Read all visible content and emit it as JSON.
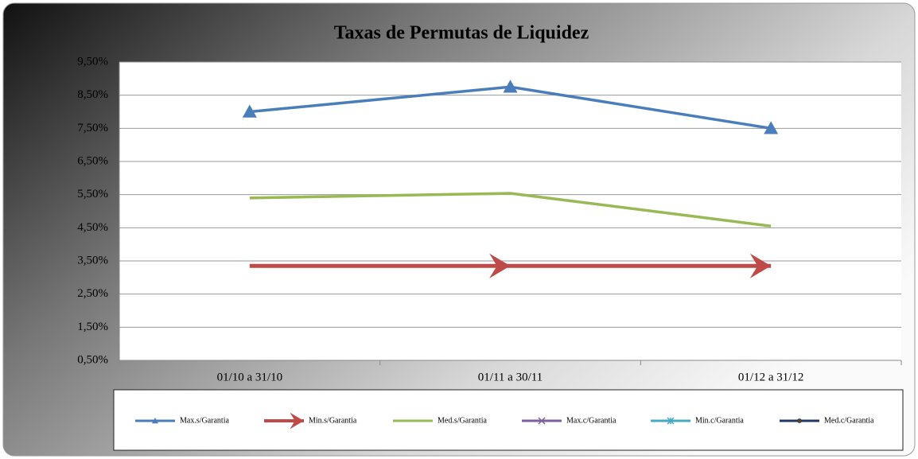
{
  "chart_data": {
    "type": "line",
    "title": "Taxas de Permutas de Liquidez",
    "categories": [
      "01/10 a 31/10",
      "01/11 a 30/11",
      "01/12 a 31/12"
    ],
    "series": [
      {
        "name": "Max.s/Garantia",
        "color": "#4a7ebb",
        "marker": "triangle",
        "values": [
          8.0,
          8.75,
          7.5
        ]
      },
      {
        "name": "Min.s/Garantia",
        "color": "#be4b48",
        "marker": "arrow",
        "values": [
          3.35,
          3.35,
          3.35
        ]
      },
      {
        "name": "Med.s/Garantia",
        "color": "#98b954",
        "marker": "none",
        "values": [
          5.4,
          5.54,
          4.55
        ]
      },
      {
        "name": "Max.c/Garantia",
        "color": "#7d60a0",
        "marker": "x",
        "values": [
          null,
          null,
          null
        ]
      },
      {
        "name": "Min.c/Garantia",
        "color": "#46aac5",
        "marker": "star",
        "values": [
          null,
          null,
          null
        ]
      },
      {
        "name": "Med.c/Garantia",
        "color": "#1f3864",
        "marker": "circle",
        "values": [
          null,
          null,
          null
        ]
      }
    ],
    "ylim": [
      0.5,
      9.5
    ],
    "yticks": [
      {
        "value": 0.5,
        "label": "0,50%"
      },
      {
        "value": 1.5,
        "label": "1,50%"
      },
      {
        "value": 2.5,
        "label": "2,50%"
      },
      {
        "value": 3.5,
        "label": "3,50%"
      },
      {
        "value": 4.5,
        "label": "4,50%"
      },
      {
        "value": 5.5,
        "label": "5,50%"
      },
      {
        "value": 6.5,
        "label": "6,50%"
      },
      {
        "value": 7.5,
        "label": "7,50%"
      },
      {
        "value": 8.5,
        "label": "8,50%"
      },
      {
        "value": 9.5,
        "label": "9,50%"
      }
    ],
    "grid": true,
    "legend": "bottom"
  }
}
